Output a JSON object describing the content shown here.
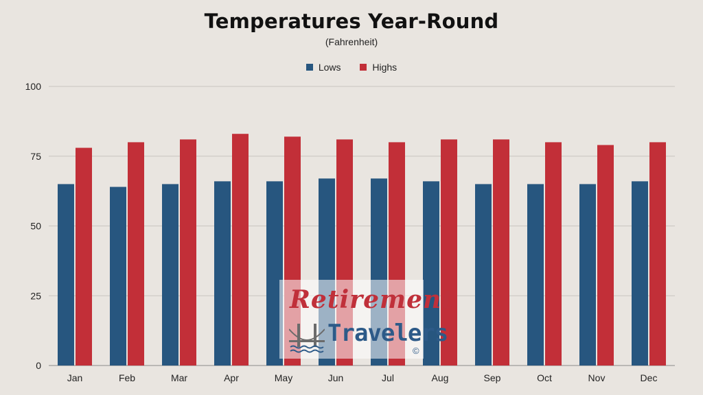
{
  "chart_data": {
    "type": "bar",
    "title": "Temperatures Year-Round",
    "subtitle": "(Fahrenheit)",
    "categories": [
      "Jan",
      "Feb",
      "Mar",
      "Apr",
      "May",
      "Jun",
      "Jul",
      "Aug",
      "Sep",
      "Oct",
      "Nov",
      "Dec"
    ],
    "series": [
      {
        "name": "Lows",
        "color": "#27567f",
        "values": [
          65,
          64,
          65,
          66,
          66,
          67,
          67,
          66,
          65,
          65,
          65,
          66
        ]
      },
      {
        "name": "Highs",
        "color": "#c22f38",
        "values": [
          78,
          80,
          81,
          83,
          82,
          81,
          80,
          81,
          81,
          80,
          79,
          80
        ]
      }
    ],
    "ylim": [
      0,
      100
    ],
    "yticks": [
      0,
      25,
      50,
      75,
      100
    ],
    "xlabel": "",
    "ylabel": "",
    "grid": true,
    "legend_position": "top-center"
  },
  "watermark": {
    "line1": "Retirement",
    "line2": "Travelers",
    "copyright": "©"
  }
}
